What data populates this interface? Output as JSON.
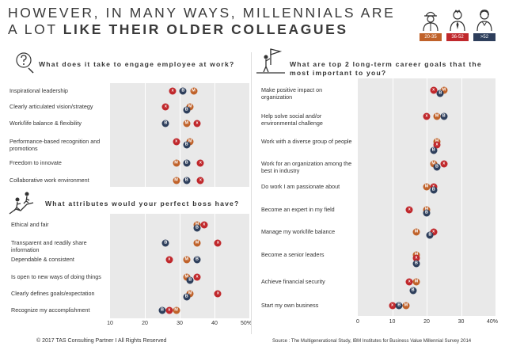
{
  "header": {
    "title_line1": "HOWEVER, IN MANY WAYS, MILLENNIALS ARE",
    "title_line2_normal": "A LOT ",
    "title_line2_bold": "LIKE THEIR OLDER COLLEAGUES"
  },
  "legend": [
    {
      "label": "20-35",
      "color": "#c0622a",
      "marker": "M"
    },
    {
      "label": "36-52",
      "color": "#c0282c",
      "marker": "X"
    },
    {
      "label": ">52",
      "color": "#2e3f5c",
      "marker": "B"
    }
  ],
  "colors": {
    "M": "#c0622a",
    "X": "#c0282c",
    "B": "#2e3f5c"
  },
  "footer": {
    "copyright": "© 2017 TAS Consulting Partner  I  All Rights Reserved",
    "source": "Source  :  The Multigenerational Study, IBM Institutes for Business Value Millennial Survey 2014"
  },
  "chart_data": [
    {
      "type": "scatter",
      "title": "What does it take to engage employee at work?",
      "categories": [
        "Inspirational leadership",
        "Clearly articulated vision/strategy",
        "Work/life balance & flexibility",
        "Performance-based recognition and promotions",
        "Freedom to innovate",
        "Collaborative work environment"
      ],
      "series": [
        {
          "name": "20-35",
          "marker": "M",
          "values": [
            34,
            33,
            32,
            33,
            29,
            29
          ]
        },
        {
          "name": "36-52",
          "marker": "x",
          "values": [
            28,
            26,
            35,
            29,
            36,
            36
          ]
        },
        {
          "name": ">52",
          "marker": "B",
          "values": [
            31,
            32,
            26,
            32,
            32,
            32
          ]
        }
      ],
      "xlim": [
        10,
        50
      ]
    },
    {
      "type": "scatter",
      "title": "What attributes would your perfect boss have?",
      "categories": [
        "Ethical and fair",
        "Transparent and readily share information",
        "Dependable & consistent",
        "Is open to new ways of doing things",
        "Clearly defines goals/expectation",
        "Recognize my accomplishment"
      ],
      "series": [
        {
          "name": "20-35",
          "marker": "M",
          "values": [
            35,
            35,
            32,
            32,
            33,
            29
          ]
        },
        {
          "name": "36-52",
          "marker": "x",
          "values": [
            37,
            41,
            27,
            35,
            41,
            27
          ]
        },
        {
          "name": ">52",
          "marker": "B",
          "values": [
            35,
            26,
            35,
            33,
            32,
            25
          ]
        }
      ],
      "x_ticks": [
        "10",
        "20",
        "30",
        "40",
        "50%"
      ],
      "xlim": [
        10,
        50
      ]
    },
    {
      "type": "scatter",
      "title": "What are top 2 long-term career goals that the most important to you?",
      "categories": [
        "Make positive impact on organization",
        "Help solve social and/or environmental challenge",
        "Work with a diverse group of people",
        "Work for an organization among the best in industry",
        "Do work I am passionate about",
        "Become an expert in my field",
        "Manage my work/life balance",
        "Become a senior leaders",
        "Achieve financial security",
        "Start my own business"
      ],
      "series": [
        {
          "name": "20-35",
          "marker": "M",
          "values": [
            25,
            23,
            23,
            22,
            20,
            20,
            17,
            17,
            17,
            14
          ]
        },
        {
          "name": "36-52",
          "marker": "x",
          "values": [
            22,
            20,
            23,
            25,
            22,
            15,
            22,
            17,
            15,
            10
          ]
        },
        {
          "name": ">52",
          "marker": "B",
          "values": [
            24,
            25,
            22,
            23,
            22,
            20,
            21,
            17,
            16,
            12
          ]
        }
      ],
      "x_ticks": [
        "0",
        "10",
        "20",
        "30",
        "40%"
      ],
      "xlim": [
        0,
        40
      ]
    }
  ]
}
